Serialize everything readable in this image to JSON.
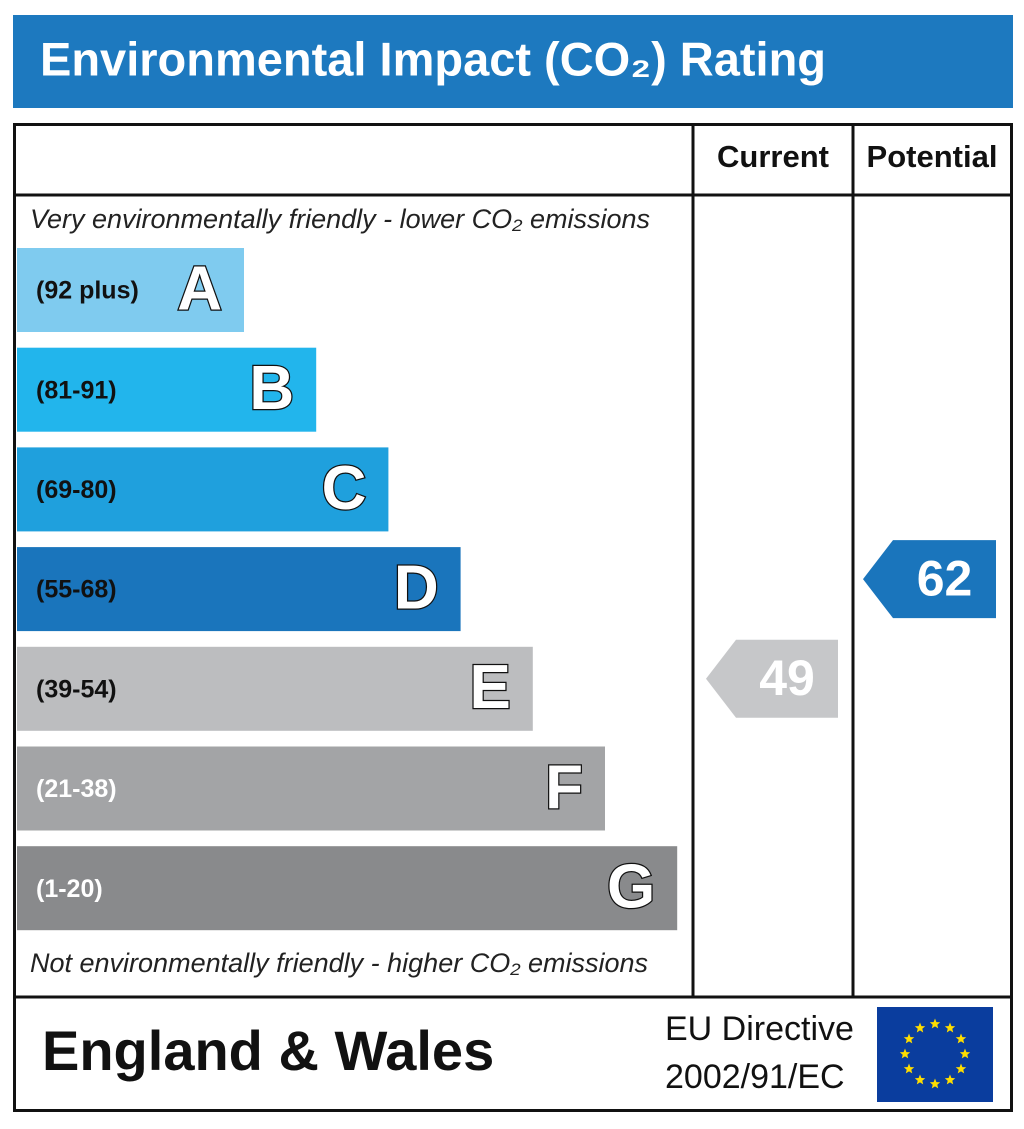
{
  "chart_data": {
    "type": "rating",
    "title": "Environmental Impact (CO₂) Rating",
    "columns": [
      "Current",
      "Potential"
    ],
    "top_note": "Very environmentally friendly - lower CO₂ emissions",
    "bottom_note": "Not environmentally friendly - higher CO₂ emissions",
    "bands": [
      {
        "range": "(92 plus)",
        "letter": "A",
        "color": "#7fcbef",
        "label_color": "#111111"
      },
      {
        "range": "(81-91)",
        "letter": "B",
        "color": "#22b5ec",
        "label_color": "#111111"
      },
      {
        "range": "(69-80)",
        "letter": "C",
        "color": "#1fa0dd",
        "label_color": "#111111"
      },
      {
        "range": "(55-68)",
        "letter": "D",
        "color": "#1a75bc",
        "label_color": "#111111"
      },
      {
        "range": "(39-54)",
        "letter": "E",
        "color": "#bcbdbf",
        "label_color": "#111111"
      },
      {
        "range": "(21-38)",
        "letter": "F",
        "color": "#a3a4a6",
        "label_color": "#ffffff"
      },
      {
        "range": "(1-20)",
        "letter": "G",
        "color": "#898a8c",
        "label_color": "#ffffff"
      }
    ],
    "current": {
      "value": 49,
      "color": "#c6c7c9"
    },
    "potential": {
      "value": 62,
      "color": "#1a75bc"
    },
    "footer": {
      "region": "England & Wales",
      "directive": [
        "EU Directive",
        "2002/91/EC"
      ]
    }
  }
}
